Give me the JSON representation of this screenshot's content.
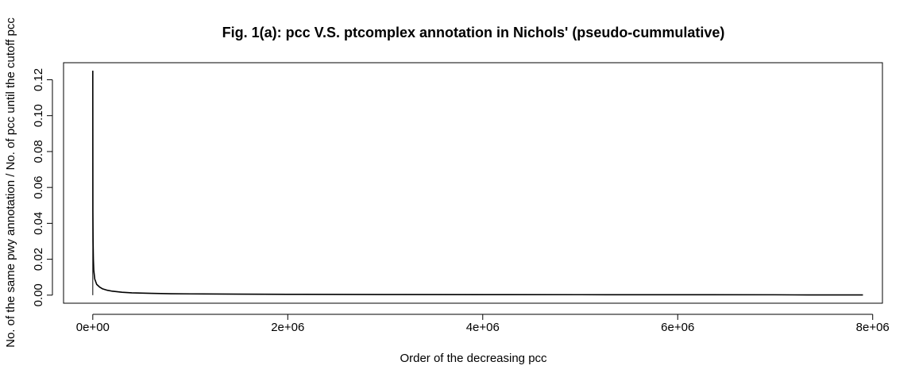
{
  "chart_data": {
    "type": "line",
    "title": "Fig. 1(a): pcc V.S. ptcomplex annotation in Nichols' (pseudo-cummulative)",
    "xlabel": "Order of the decreasing pcc",
    "ylabel": "No. of the same pwy annotation / No. of pcc until the  cutoff pcc",
    "xlim": [
      -300000,
      8100000
    ],
    "ylim": [
      -0.0045,
      0.1295
    ],
    "x_ticks": [
      0,
      2000000,
      4000000,
      6000000,
      8000000
    ],
    "x_tick_labels": [
      "0e+00",
      "2e+06",
      "4e+06",
      "6e+06",
      "8e+06"
    ],
    "y_ticks": [
      0.0,
      0.02,
      0.04,
      0.06,
      0.08,
      0.1,
      0.12
    ],
    "y_tick_labels": [
      "0.00",
      "0.02",
      "0.04",
      "0.06",
      "0.08",
      "0.10",
      "0.12"
    ],
    "grid": false,
    "legend": "none",
    "series": [
      {
        "x": [
          1,
          1000,
          3000,
          6000,
          10000,
          20000,
          40000,
          70000,
          100000,
          150000,
          200000,
          300000,
          400000,
          600000,
          800000,
          1000000,
          1500000,
          2000000,
          3000000,
          4000000,
          5000000,
          6000000,
          7000000,
          7200000,
          7500000,
          7900000
        ],
        "y": [
          0.125,
          0.047,
          0.03,
          0.02,
          0.014,
          0.009,
          0.006,
          0.0045,
          0.0035,
          0.0027,
          0.0022,
          0.0016,
          0.0013,
          0.001,
          0.0008,
          0.0007,
          0.00055,
          0.00045,
          0.00035,
          0.0003,
          0.00025,
          0.00022,
          0.0002,
          0.00015,
          0.0001,
          0.0001
        ]
      }
    ],
    "colors": {
      "line": "#000000",
      "axis": "#000000",
      "background": "#ffffff"
    }
  }
}
